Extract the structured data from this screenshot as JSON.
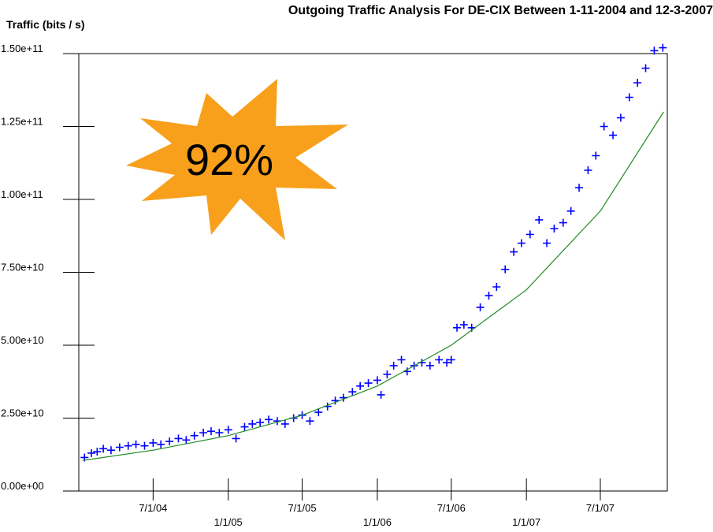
{
  "chart_data": {
    "type": "scatter",
    "title": "Outgoing Traffic Analysis For DE-CIX Between 1-11-2004 and 12-3-2007",
    "y_label": "Traffic (bits / s)",
    "annotation": "92%",
    "annotation_color": "#f8a01c",
    "xlim": [
      "2004-01-01",
      "2007-12-12"
    ],
    "ylim": [
      0,
      150000000000.0
    ],
    "xticks": [
      {
        "value": "2004-07-01",
        "label": "7/1/04"
      },
      {
        "value": "2005-01-01",
        "label": "1/1/05"
      },
      {
        "value": "2005-07-01",
        "label": "7/1/05"
      },
      {
        "value": "2006-01-01",
        "label": "1/1/06"
      },
      {
        "value": "2006-07-01",
        "label": "7/1/06"
      },
      {
        "value": "2007-01-01",
        "label": "1/1/07"
      },
      {
        "value": "2007-07-01",
        "label": "7/1/07"
      }
    ],
    "yticks": [
      {
        "value": 0,
        "label": "0.00e+00"
      },
      {
        "value": 25000000000.0,
        "label": "2.50e+10"
      },
      {
        "value": 50000000000.0,
        "label": "5.00e+10"
      },
      {
        "value": 75000000000.0,
        "label": "7.50e+10"
      },
      {
        "value": 100000000000.0,
        "label": "1.00e+11"
      },
      {
        "value": 125000000000.0,
        "label": "1.25e+11"
      },
      {
        "value": 150000000000.0,
        "label": "1.50e+11"
      }
    ],
    "series": [
      {
        "type": "scatter",
        "color": "#0000ff",
        "x": [
          "2004-01-15",
          "2004-02-01",
          "2004-02-15",
          "2004-03-01",
          "2004-03-20",
          "2004-04-10",
          "2004-05-01",
          "2004-05-20",
          "2004-06-10",
          "2004-07-01",
          "2004-07-20",
          "2004-08-10",
          "2004-09-01",
          "2004-09-20",
          "2004-10-10",
          "2004-11-01",
          "2004-11-20",
          "2004-12-10",
          "2005-01-01",
          "2005-01-20",
          "2005-02-10",
          "2005-03-01",
          "2005-03-20",
          "2005-04-10",
          "2005-05-01",
          "2005-05-20",
          "2005-06-10",
          "2005-07-01",
          "2005-07-20",
          "2005-08-10",
          "2005-09-01",
          "2005-09-20",
          "2005-10-10",
          "2005-11-01",
          "2005-11-20",
          "2005-12-10",
          "2006-01-01",
          "2006-01-10",
          "2006-01-25",
          "2006-02-10",
          "2006-03-01",
          "2006-03-15",
          "2006-04-01",
          "2006-04-20",
          "2006-05-10",
          "2006-06-01",
          "2006-06-20",
          "2006-07-01",
          "2006-07-15",
          "2006-08-01",
          "2006-08-20",
          "2006-09-10",
          "2006-10-01",
          "2006-10-20",
          "2006-11-10",
          "2006-12-01",
          "2006-12-20",
          "2007-01-10",
          "2007-02-01",
          "2007-02-20",
          "2007-03-10",
          "2007-04-01",
          "2007-04-20",
          "2007-05-10",
          "2007-06-01",
          "2007-06-20",
          "2007-07-10",
          "2007-08-01",
          "2007-08-20",
          "2007-09-10",
          "2007-09-30",
          "2007-10-20",
          "2007-11-10",
          "2007-12-01"
        ],
        "values": [
          11500000000.0,
          13000000000.0,
          13500000000.0,
          14500000000.0,
          14000000000.0,
          15000000000.0,
          15500000000.0,
          16000000000.0,
          15500000000.0,
          16500000000.0,
          16000000000.0,
          17000000000.0,
          18000000000.0,
          17500000000.0,
          19000000000.0,
          20000000000.0,
          20500000000.0,
          20000000000.0,
          21000000000.0,
          18000000000.0,
          22000000000.0,
          23000000000.0,
          23500000000.0,
          24500000000.0,
          24000000000.0,
          23000000000.0,
          25000000000.0,
          26000000000.0,
          24000000000.0,
          27000000000.0,
          29000000000.0,
          31000000000.0,
          32000000000.0,
          34000000000.0,
          36000000000.0,
          37000000000.0,
          38000000000.0,
          33000000000.0,
          40000000000.0,
          43000000000.0,
          45000000000.0,
          41000000000.0,
          43000000000.0,
          44000000000.0,
          43000000000.0,
          45000000000.0,
          44000000000.0,
          45000000000.0,
          56000000000.0,
          57000000000.0,
          56000000000.0,
          63000000000.0,
          67000000000.0,
          70000000000.0,
          76000000000.0,
          82000000000.0,
          85000000000.0,
          88000000000.0,
          93000000000.0,
          85000000000.0,
          90000000000.0,
          92000000000.0,
          96000000000.0,
          104000000000.0,
          110000000000.0,
          115000000000.0,
          125000000000.0,
          122000000000.0,
          128000000000.0,
          135000000000.0,
          140000000000.0,
          145000000000.0,
          151000000000.0,
          152000000000.0
        ]
      },
      {
        "type": "line",
        "color": "#228b22",
        "x": [
          "2004-01-11",
          "2004-07-01",
          "2005-01-01",
          "2005-07-01",
          "2006-01-01",
          "2006-07-01",
          "2007-01-01",
          "2007-07-01",
          "2007-12-03"
        ],
        "values": [
          10500000000.0,
          14000000000.0,
          19000000000.0,
          26000000000.0,
          36000000000.0,
          50000000000.0,
          69000000000.0,
          96000000000.0,
          130000000000.0
        ]
      }
    ]
  }
}
